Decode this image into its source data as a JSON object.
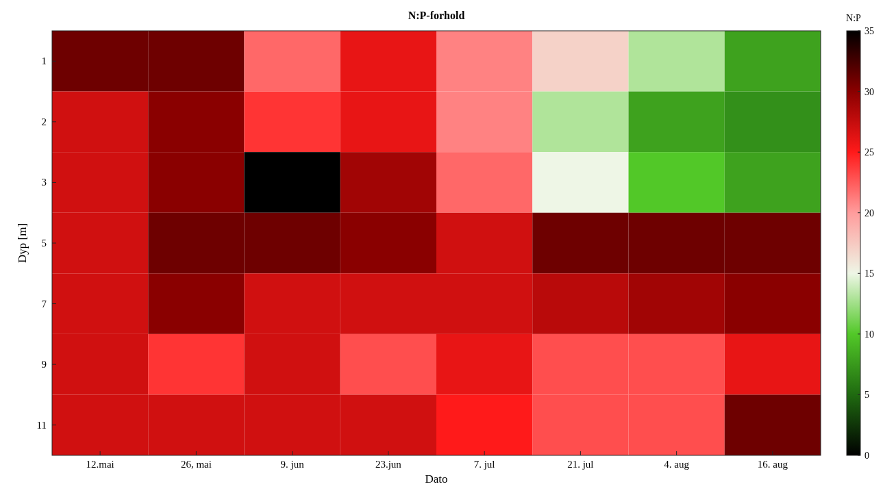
{
  "chart_data": {
    "type": "heatmap",
    "title": "N:P-forhold",
    "xlabel": "Dato",
    "ylabel": "Dyp [m]",
    "clabel": "N:P",
    "categories": [
      "12.mai",
      "26, mai",
      "9. jun",
      "23.jun",
      "7. jul",
      "21. jul",
      "4. aug",
      "16. aug"
    ],
    "y_categories": [
      "1",
      "2",
      "3",
      "5",
      "7",
      "9",
      "11"
    ],
    "cells": [
      [
        31,
        31,
        22,
        26,
        21,
        17,
        13,
        8
      ],
      [
        27,
        30,
        24,
        26,
        21,
        13,
        8,
        7
      ],
      [
        27,
        30,
        36,
        29,
        22,
        15,
        10,
        8
      ],
      [
        27,
        31,
        31,
        30,
        27,
        31,
        31,
        31
      ],
      [
        27,
        30,
        27,
        27,
        27,
        28,
        29,
        30
      ],
      [
        27,
        24,
        27,
        23,
        26,
        23,
        23,
        26
      ],
      [
        27,
        27,
        27,
        27,
        25,
        23,
        23,
        31
      ]
    ],
    "clim": [
      0,
      35
    ],
    "cticks": [
      0,
      5,
      10,
      15,
      20,
      25,
      30,
      35
    ],
    "colors": [
      "#000000",
      "#1f6a10",
      "#52c828",
      "#eef6e6",
      "#ff9c9c",
      "#ff1a1a",
      "#8a0000",
      "#000000"
    ]
  }
}
